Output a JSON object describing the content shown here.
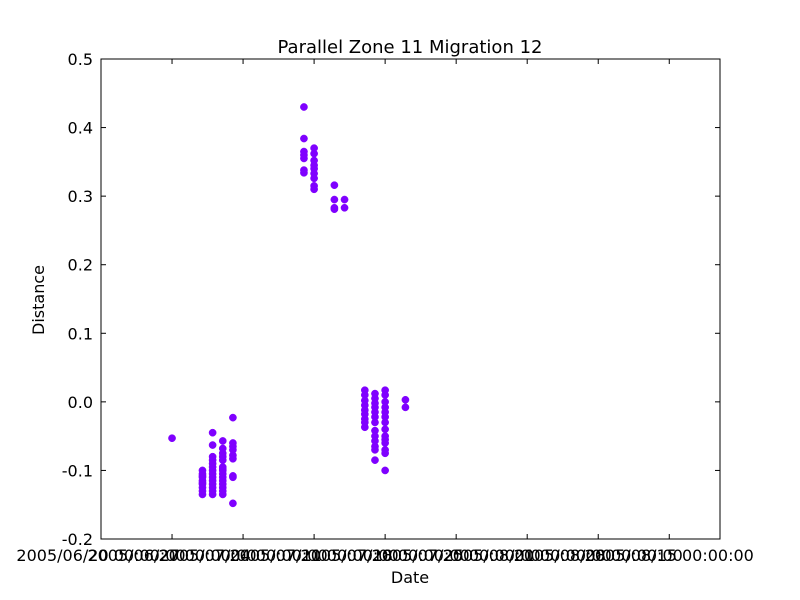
{
  "chart_data": {
    "type": "scatter",
    "title": "Parallel Zone 11 Migration 12",
    "xlabel": "Date",
    "ylabel": "Distance",
    "ylim": [
      -0.2,
      0.5
    ],
    "yticks": [
      "-0.2",
      "-0.1",
      "0.0",
      "0.1",
      "0.2",
      "0.3",
      "0.4",
      "0.5"
    ],
    "xlim": [
      "2005-06-20",
      "2005-08-20"
    ],
    "xticks": [
      "2005/06/20 00:00:00",
      "2005/06/27 00:00:00",
      "2005/07/04 00:00:00",
      "2005/07/11 00:00:00",
      "2005/07/18 00:00:00",
      "2005/07/25 00:00:00",
      "2005/08/01 00:00:00",
      "2005/08/08 00:00:00",
      "2005/08/15 00:00:00"
    ],
    "marker_color": "#7f00ff",
    "grid": false,
    "series": [
      {
        "points": [
          [
            "2005-06-27",
            -0.053
          ],
          [
            "2005-06-30",
            -0.1
          ],
          [
            "2005-06-30",
            -0.105
          ],
          [
            "2005-06-30",
            -0.11
          ],
          [
            "2005-06-30",
            -0.115
          ],
          [
            "2005-06-30",
            -0.12
          ],
          [
            "2005-06-30",
            -0.125
          ],
          [
            "2005-06-30",
            -0.13
          ],
          [
            "2005-06-30",
            -0.135
          ],
          [
            "2005-06-30",
            -0.108
          ],
          [
            "2005-06-30",
            -0.118
          ],
          [
            "2005-07-01",
            -0.045
          ],
          [
            "2005-07-01",
            -0.08
          ],
          [
            "2005-07-01",
            -0.085
          ],
          [
            "2005-07-01",
            -0.095
          ],
          [
            "2005-07-01",
            -0.1
          ],
          [
            "2005-07-01",
            -0.105
          ],
          [
            "2005-07-01",
            -0.11
          ],
          [
            "2005-07-01",
            -0.115
          ],
          [
            "2005-07-01",
            -0.12
          ],
          [
            "2005-07-01",
            -0.125
          ],
          [
            "2005-07-01",
            -0.13
          ],
          [
            "2005-07-01",
            -0.135
          ],
          [
            "2005-07-01",
            -0.063
          ],
          [
            "2005-07-01",
            -0.09
          ],
          [
            "2005-07-02",
            -0.057
          ],
          [
            "2005-07-02",
            -0.068
          ],
          [
            "2005-07-02",
            -0.075
          ],
          [
            "2005-07-02",
            -0.08
          ],
          [
            "2005-07-02",
            -0.085
          ],
          [
            "2005-07-02",
            -0.095
          ],
          [
            "2005-07-02",
            -0.1
          ],
          [
            "2005-07-02",
            -0.105
          ],
          [
            "2005-07-02",
            -0.11
          ],
          [
            "2005-07-02",
            -0.115
          ],
          [
            "2005-07-02",
            -0.12
          ],
          [
            "2005-07-02",
            -0.125
          ],
          [
            "2005-07-02",
            -0.13
          ],
          [
            "2005-07-02",
            -0.135
          ],
          [
            "2005-07-02",
            -0.098
          ],
          [
            "2005-07-03",
            -0.023
          ],
          [
            "2005-07-03",
            -0.06
          ],
          [
            "2005-07-03",
            -0.065
          ],
          [
            "2005-07-03",
            -0.07
          ],
          [
            "2005-07-03",
            -0.078
          ],
          [
            "2005-07-03",
            -0.083
          ],
          [
            "2005-07-03",
            -0.108
          ],
          [
            "2005-07-03",
            -0.11
          ],
          [
            "2005-07-03",
            -0.148
          ],
          [
            "2005-07-10",
            0.43
          ],
          [
            "2005-07-10",
            0.384
          ],
          [
            "2005-07-10",
            0.365
          ],
          [
            "2005-07-10",
            0.36
          ],
          [
            "2005-07-10",
            0.355
          ],
          [
            "2005-07-10",
            0.338
          ],
          [
            "2005-07-10",
            0.334
          ],
          [
            "2005-07-11",
            0.37
          ],
          [
            "2005-07-11",
            0.362
          ],
          [
            "2005-07-11",
            0.352
          ],
          [
            "2005-07-11",
            0.345
          ],
          [
            "2005-07-11",
            0.34
          ],
          [
            "2005-07-11",
            0.333
          ],
          [
            "2005-07-11",
            0.326
          ],
          [
            "2005-07-11",
            0.315
          ],
          [
            "2005-07-11",
            0.31
          ],
          [
            "2005-07-13",
            0.316
          ],
          [
            "2005-07-13",
            0.295
          ],
          [
            "2005-07-13",
            0.283
          ],
          [
            "2005-07-13",
            0.281
          ],
          [
            "2005-07-14",
            0.295
          ],
          [
            "2005-07-14",
            0.283
          ],
          [
            "2005-07-16",
            0.017
          ],
          [
            "2005-07-16",
            0.01
          ],
          [
            "2005-07-16",
            0.002
          ],
          [
            "2005-07-16",
            -0.005
          ],
          [
            "2005-07-16",
            -0.012
          ],
          [
            "2005-07-16",
            -0.018
          ],
          [
            "2005-07-16",
            -0.025
          ],
          [
            "2005-07-16",
            -0.03
          ],
          [
            "2005-07-16",
            -0.037
          ],
          [
            "2005-07-17",
            0.012
          ],
          [
            "2005-07-17",
            0.005
          ],
          [
            "2005-07-17",
            -0.002
          ],
          [
            "2005-07-17",
            -0.008
          ],
          [
            "2005-07-17",
            -0.015
          ],
          [
            "2005-07-17",
            -0.022
          ],
          [
            "2005-07-17",
            -0.03
          ],
          [
            "2005-07-17",
            -0.042
          ],
          [
            "2005-07-17",
            -0.05
          ],
          [
            "2005-07-17",
            -0.057
          ],
          [
            "2005-07-17",
            -0.065
          ],
          [
            "2005-07-17",
            -0.07
          ],
          [
            "2005-07-17",
            -0.085
          ],
          [
            "2005-07-18",
            0.017
          ],
          [
            "2005-07-18",
            0.01
          ],
          [
            "2005-07-18",
            0.0
          ],
          [
            "2005-07-18",
            -0.008
          ],
          [
            "2005-07-18",
            -0.015
          ],
          [
            "2005-07-18",
            -0.022
          ],
          [
            "2005-07-18",
            -0.03
          ],
          [
            "2005-07-18",
            -0.04
          ],
          [
            "2005-07-18",
            -0.05
          ],
          [
            "2005-07-18",
            -0.055
          ],
          [
            "2005-07-18",
            -0.06
          ],
          [
            "2005-07-18",
            -0.07
          ],
          [
            "2005-07-18",
            -0.075
          ],
          [
            "2005-07-18",
            -0.1
          ],
          [
            "2005-07-20",
            0.003
          ],
          [
            "2005-07-20",
            -0.008
          ]
        ]
      }
    ]
  }
}
